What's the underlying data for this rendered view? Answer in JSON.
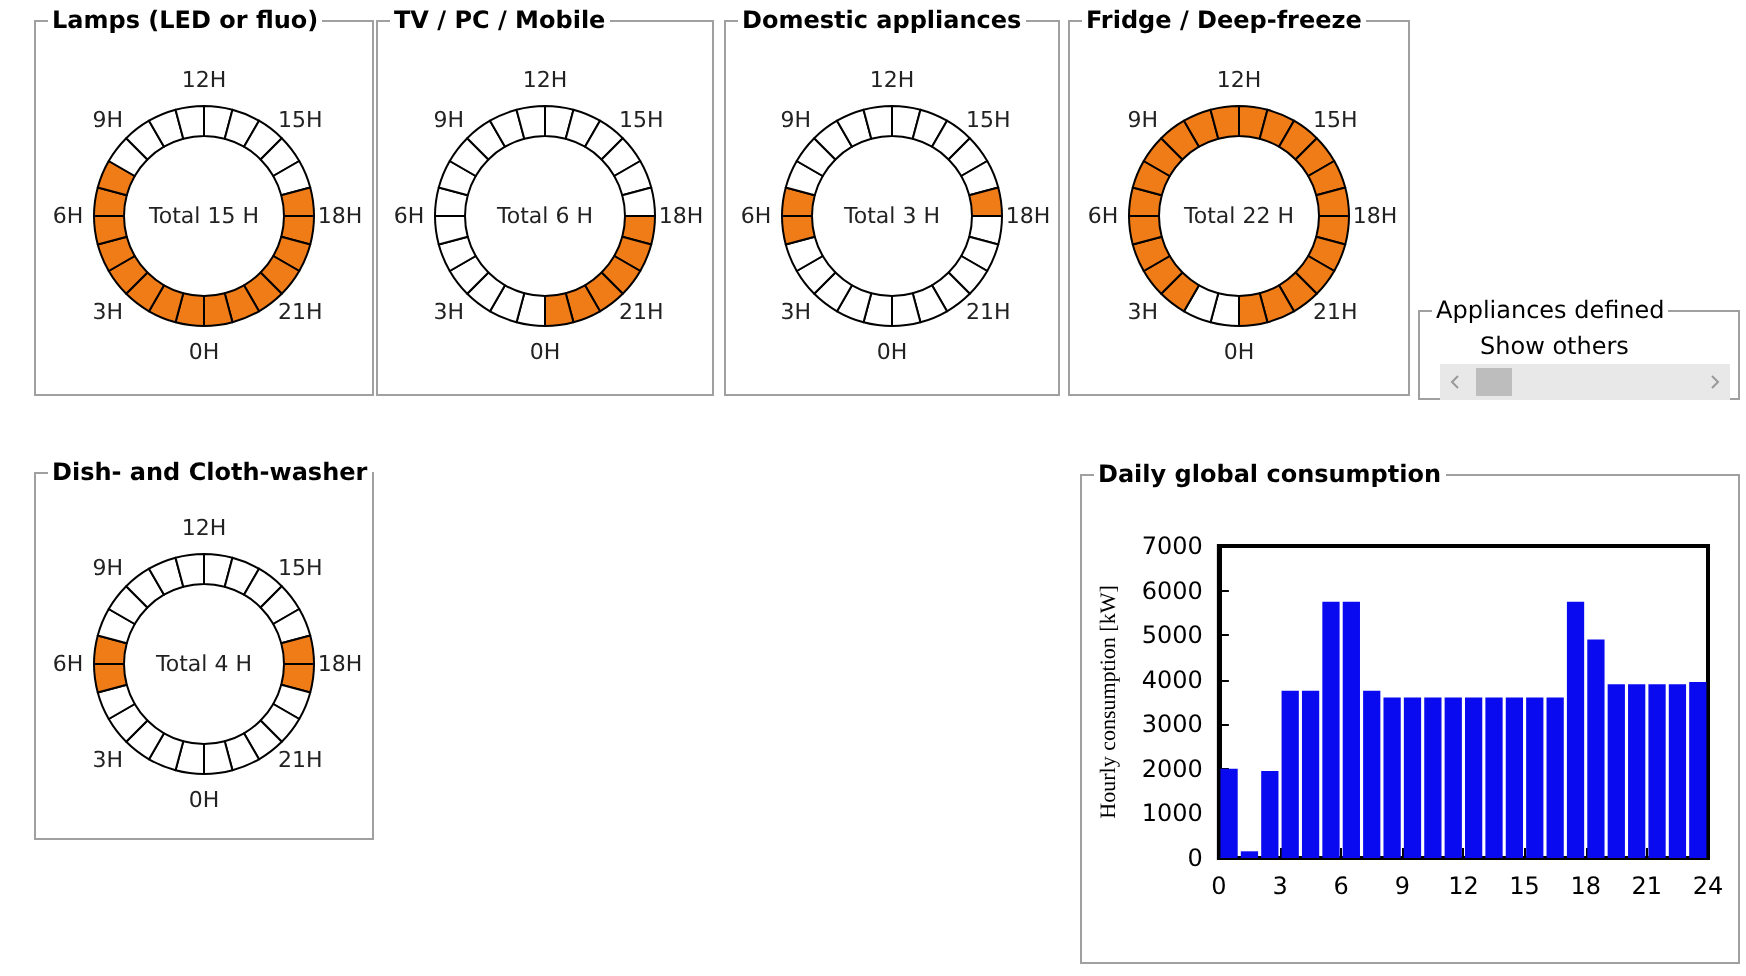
{
  "chart_data": [
    {
      "type": "donut",
      "title": "Lamps (LED or fluo)",
      "annotations": [
        "Total 15 H",
        "12H",
        "15H",
        "18H",
        "21H",
        "0H",
        "3H",
        "6H",
        "9H"
      ],
      "categories": [
        null,
        null,
        null,
        null,
        null,
        null,
        null,
        null,
        null,
        null,
        null,
        null,
        null,
        null,
        null,
        null,
        null,
        null,
        null,
        null,
        null,
        null,
        null,
        null
      ],
      "values": [
        4.1667,
        4.1667,
        4.1667,
        4.1667,
        4.1667,
        4.1667,
        4.1667,
        4.1667,
        4.1667,
        4.1667,
        4.1667,
        4.1667,
        4.1667,
        4.1667,
        4.1667,
        4.1667,
        4.1667,
        4.1667,
        4.1667,
        4.1667,
        4.1667,
        4.1667,
        4.1667,
        4.1667
      ],
      "colors": [
        "#ffffff",
        "#ffffff",
        "#ffffff",
        "#ffffff",
        "#ffffff",
        "#f07c18",
        "#f07c18",
        "#f07c18",
        "#f07c18",
        "#f07c18",
        "#f07c18",
        "#f07c18",
        "#f07c18",
        "#f07c18",
        "#f07c18",
        "#f07c18",
        "#f07c18",
        "#f07c18",
        "#f07c18",
        "#f07c18",
        "#ffffff",
        "#ffffff",
        "#ffffff",
        "#ffffff"
      ]
    },
    {
      "type": "donut",
      "title": "TV / PC / Mobile",
      "annotations": [
        "Total 6 H",
        "12H",
        "15H",
        "18H",
        "21H",
        "0H",
        "3H",
        "6H",
        "9H"
      ],
      "categories": [
        null,
        null,
        null,
        null,
        null,
        null,
        null,
        null,
        null,
        null,
        null,
        null,
        null,
        null,
        null,
        null,
        null,
        null,
        null,
        null,
        null,
        null,
        null,
        null
      ],
      "values": [
        4.1667,
        4.1667,
        4.1667,
        4.1667,
        4.1667,
        4.1667,
        4.1667,
        4.1667,
        4.1667,
        4.1667,
        4.1667,
        4.1667,
        4.1667,
        4.1667,
        4.1667,
        4.1667,
        4.1667,
        4.1667,
        4.1667,
        4.1667,
        4.1667,
        4.1667,
        4.1667,
        4.1667
      ],
      "colors": [
        "#ffffff",
        "#ffffff",
        "#ffffff",
        "#ffffff",
        "#ffffff",
        "#ffffff",
        "#f07c18",
        "#f07c18",
        "#f07c18",
        "#f07c18",
        "#f07c18",
        "#f07c18",
        "#ffffff",
        "#ffffff",
        "#ffffff",
        "#ffffff",
        "#ffffff",
        "#ffffff",
        "#ffffff",
        "#ffffff",
        "#ffffff",
        "#ffffff",
        "#ffffff",
        "#ffffff"
      ]
    },
    {
      "type": "donut",
      "title": "Domestic appliances",
      "annotations": [
        "Total 3 H",
        "12H",
        "15H",
        "18H",
        "21H",
        "0H",
        "3H",
        "6H",
        "9H"
      ],
      "categories": [
        null,
        null,
        null,
        null,
        null,
        null,
        null,
        null,
        null,
        null,
        null,
        null,
        null,
        null,
        null,
        null,
        null,
        null,
        null,
        null,
        null,
        null,
        null,
        null
      ],
      "values": [
        4.1667,
        4.1667,
        4.1667,
        4.1667,
        4.1667,
        4.1667,
        4.1667,
        4.1667,
        4.1667,
        4.1667,
        4.1667,
        4.1667,
        4.1667,
        4.1667,
        4.1667,
        4.1667,
        4.1667,
        4.1667,
        4.1667,
        4.1667,
        4.1667,
        4.1667,
        4.1667,
        4.1667
      ],
      "colors": [
        "#ffffff",
        "#ffffff",
        "#ffffff",
        "#ffffff",
        "#ffffff",
        "#f07c18",
        "#ffffff",
        "#ffffff",
        "#ffffff",
        "#ffffff",
        "#ffffff",
        "#ffffff",
        "#ffffff",
        "#ffffff",
        "#ffffff",
        "#ffffff",
        "#ffffff",
        "#f07c18",
        "#f07c18",
        "#ffffff",
        "#ffffff",
        "#ffffff",
        "#ffffff",
        "#ffffff"
      ]
    },
    {
      "type": "donut",
      "title": "Fridge / Deep-freeze",
      "annotations": [
        "Total 22 H",
        "12H",
        "15H",
        "18H",
        "21H",
        "0H",
        "3H",
        "6H",
        "9H"
      ],
      "categories": [
        null,
        null,
        null,
        null,
        null,
        null,
        null,
        null,
        null,
        null,
        null,
        null,
        null,
        null,
        null,
        null,
        null,
        null,
        null,
        null,
        null,
        null,
        null,
        null
      ],
      "values": [
        4.1667,
        4.1667,
        4.1667,
        4.1667,
        4.1667,
        4.1667,
        4.1667,
        4.1667,
        4.1667,
        4.1667,
        4.1667,
        4.1667,
        4.1667,
        4.1667,
        4.1667,
        4.1667,
        4.1667,
        4.1667,
        4.1667,
        4.1667,
        4.1667,
        4.1667,
        4.1667,
        4.1667
      ],
      "colors": [
        "#f07c18",
        "#f07c18",
        "#f07c18",
        "#f07c18",
        "#f07c18",
        "#f07c18",
        "#f07c18",
        "#f07c18",
        "#f07c18",
        "#f07c18",
        "#f07c18",
        "#f07c18",
        "#ffffff",
        "#ffffff",
        "#f07c18",
        "#f07c18",
        "#f07c18",
        "#f07c18",
        "#f07c18",
        "#f07c18",
        "#f07c18",
        "#f07c18",
        "#f07c18",
        "#f07c18"
      ]
    },
    {
      "type": "other",
      "title": "Appliances defined",
      "annotations": [
        "Show others"
      ]
    },
    {
      "type": "donut",
      "title": "Dish- and Cloth-washer",
      "annotations": [
        "Total 4 H",
        "12H",
        "15H",
        "18H",
        "21H",
        "0H",
        "3H",
        "6H",
        "9H"
      ],
      "categories": [
        null,
        null,
        null,
        null,
        null,
        null,
        null,
        null,
        null,
        null,
        null,
        null,
        null,
        null,
        null,
        null,
        null,
        null,
        null,
        null,
        null,
        null,
        null,
        null
      ],
      "values": [
        4.1667,
        4.1667,
        4.1667,
        4.1667,
        4.1667,
        4.1667,
        4.1667,
        4.1667,
        4.1667,
        4.1667,
        4.1667,
        4.1667,
        4.1667,
        4.1667,
        4.1667,
        4.1667,
        4.1667,
        4.1667,
        4.1667,
        4.1667,
        4.1667,
        4.1667,
        4.1667,
        4.1667
      ],
      "colors": [
        "#ffffff",
        "#ffffff",
        "#ffffff",
        "#ffffff",
        "#ffffff",
        "#f07c18",
        "#f07c18",
        "#ffffff",
        "#ffffff",
        "#ffffff",
        "#ffffff",
        "#ffffff",
        "#ffffff",
        "#ffffff",
        "#ffffff",
        "#ffffff",
        "#ffffff",
        "#f07c18",
        "#f07c18",
        "#ffffff",
        "#ffffff",
        "#ffffff",
        "#ffffff",
        "#ffffff"
      ]
    },
    {
      "type": "bar",
      "title": "Daily global consumption",
      "ylabel": "Hourly consumption [kW]",
      "color": "#0a0af0",
      "x": [
        0.5,
        1.5,
        2.5,
        3.5,
        4.5,
        5.5,
        6.5,
        7.5,
        8.5,
        9.5,
        10.5,
        11.5,
        12.5,
        13.5,
        14.5,
        15.5,
        16.5,
        17.5,
        18.5,
        19.5,
        20.5,
        21.5,
        22.5,
        23.5
      ],
      "values": [
        2000,
        150,
        1950,
        3750,
        3750,
        5750,
        5750,
        3750,
        3600,
        3600,
        3600,
        3600,
        3600,
        3600,
        3600,
        3600,
        3600,
        5750,
        4900,
        3900,
        3900,
        3900,
        3900,
        3950
      ],
      "xlim": [
        0,
        24
      ],
      "xticks": [
        0,
        3,
        6,
        9,
        12,
        15,
        18,
        21,
        24
      ],
      "ylim": [
        0,
        7000
      ],
      "yticks": [
        0,
        1000,
        2000,
        3000,
        4000,
        5000,
        6000,
        7000
      ]
    }
  ]
}
